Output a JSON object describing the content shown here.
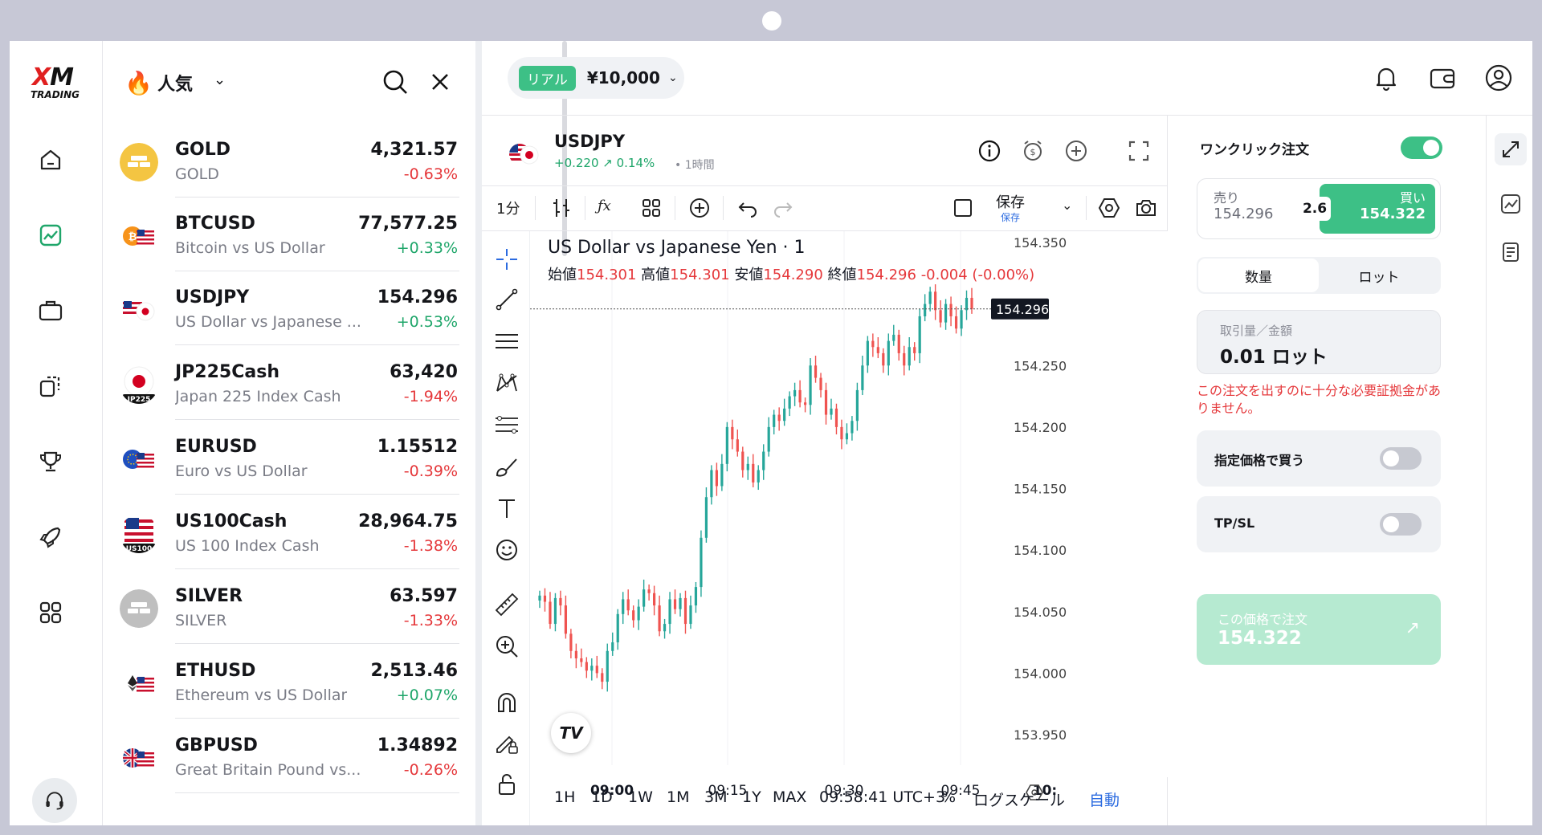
{
  "brand": {
    "logo_text": "XM",
    "logo_sub": "TRADING"
  },
  "watchlist": {
    "title": "人気",
    "items": [
      {
        "symbol": "GOLD",
        "name": "GOLD",
        "price": "4,321.57",
        "change": "-0.63%",
        "dir": "neg",
        "icon": "gold-bars-icon",
        "tag": ""
      },
      {
        "symbol": "BTCUSD",
        "name": "Bitcoin vs US Dollar",
        "price": "77,577.25",
        "change": "+0.33%",
        "dir": "pos",
        "icon": "bitcoin-usd-flag-icon",
        "tag": ""
      },
      {
        "symbol": "USDJPY",
        "name": "US Dollar vs Japanese ...",
        "price": "154.296",
        "change": "+0.53%",
        "dir": "pos",
        "icon": "usd-jpy-flag-icon",
        "tag": ""
      },
      {
        "symbol": "JP225Cash",
        "name": "Japan 225 Index Cash",
        "price": "63,420",
        "change": "-1.94%",
        "dir": "neg",
        "icon": "japan-flag-icon",
        "tag": "JP225"
      },
      {
        "symbol": "EURUSD",
        "name": "Euro vs US Dollar",
        "price": "1.15512",
        "change": "-0.39%",
        "dir": "neg",
        "icon": "eur-usd-flag-icon",
        "tag": ""
      },
      {
        "symbol": "US100Cash",
        "name": "US 100 Index Cash",
        "price": "28,964.75",
        "change": "-1.38%",
        "dir": "neg",
        "icon": "us-flag-icon",
        "tag": "US100"
      },
      {
        "symbol": "SILVER",
        "name": "SILVER",
        "price": "63.597",
        "change": "-1.33%",
        "dir": "neg",
        "icon": "silver-bars-icon",
        "tag": ""
      },
      {
        "symbol": "ETHUSD",
        "name": "Ethereum vs US Dollar",
        "price": "2,513.46",
        "change": "+0.07%",
        "dir": "pos",
        "icon": "ethereum-usd-flag-icon",
        "tag": ""
      },
      {
        "symbol": "GBPUSD",
        "name": "Great Britain Pound vs...",
        "price": "1.34892",
        "change": "-0.26%",
        "dir": "neg",
        "icon": "gbp-usd-flag-icon",
        "tag": ""
      }
    ]
  },
  "account": {
    "badge": "リアル",
    "balance": "¥10,000"
  },
  "instrument": {
    "symbol": "USDJPY",
    "change": "+0.220 ↗ 0.14%",
    "timeframe": "• 1時間"
  },
  "toolbar": {
    "interval": "1分",
    "save": "保存",
    "save_sub": "保存"
  },
  "chart_data": {
    "type": "candlestick",
    "title": "US Dollar vs Japanese Yen · 1",
    "ohlc_labels": {
      "open": "始値",
      "high": "高値",
      "low": "安値",
      "close": "終値"
    },
    "ohlc_values": {
      "open": "154.301",
      "high": "154.301",
      "low": "154.290",
      "close": "154.296",
      "change": "-0.004 (-0.00%)"
    },
    "last_price": "154.296",
    "ylim": [
      153.95,
      154.35
    ],
    "y_ticks": [
      "154.350",
      "154.250",
      "154.200",
      "154.150",
      "154.100",
      "154.050",
      "154.000",
      "153.950"
    ],
    "x_ticks": [
      "09:00",
      "09:15",
      "09:30",
      "09:45",
      "10:"
    ],
    "close": [
      154.063,
      154.058,
      154.04,
      154.061,
      154.055,
      154.032,
      154.018,
      154.012,
      154.009,
      154.002,
      154.006,
      154.0,
      153.993,
      154.018,
      154.025,
      154.048,
      154.06,
      154.051,
      154.043,
      154.054,
      154.068,
      154.065,
      154.055,
      154.034,
      154.04,
      154.06,
      154.052,
      154.061,
      154.04,
      154.055,
      154.07,
      154.11,
      154.143,
      154.165,
      154.152,
      154.17,
      154.2,
      154.19,
      154.18,
      154.165,
      154.17,
      154.155,
      154.165,
      154.18,
      154.2,
      154.21,
      154.205,
      154.215,
      154.225,
      154.23,
      154.22,
      154.218,
      154.25,
      154.24,
      154.23,
      154.21,
      154.215,
      154.2,
      154.19,
      154.195,
      154.205,
      154.23,
      154.25,
      154.27,
      154.265,
      154.26,
      154.25,
      154.27,
      154.275,
      154.26,
      154.25,
      154.265,
      154.26,
      154.29,
      154.3,
      154.31,
      154.295,
      154.285,
      154.3,
      154.29,
      154.28,
      154.295,
      154.305,
      154.296
    ]
  },
  "chart_footer": {
    "ranges": [
      "1H",
      "1D",
      "1W",
      "1M",
      "3M",
      "1Y",
      "MAX"
    ],
    "time": "09:58:41 UTC+3",
    "percent": "%",
    "log": "ログスケール",
    "auto": "自動"
  },
  "order": {
    "one_click_label": "ワンクリック注文",
    "sell_label": "売り",
    "sell_price": "154.296",
    "spread": "2.6",
    "buy_label": "買い",
    "buy_price": "154.322",
    "tab_qty": "数量",
    "tab_lot": "ロット",
    "qty_label": "取引量／金額",
    "qty_value": "0.01 ロット",
    "warning": "この注文を出すのに十分な必要証拠金がありません。",
    "limit_label": "指定価格で買う",
    "tpsl_label": "TP/SL",
    "place_label": "この価格で注文",
    "place_price": "154.322",
    "colors": {
      "accent": "#3dc086",
      "negative": "#e5383b",
      "positive": "#1fa66a"
    }
  }
}
